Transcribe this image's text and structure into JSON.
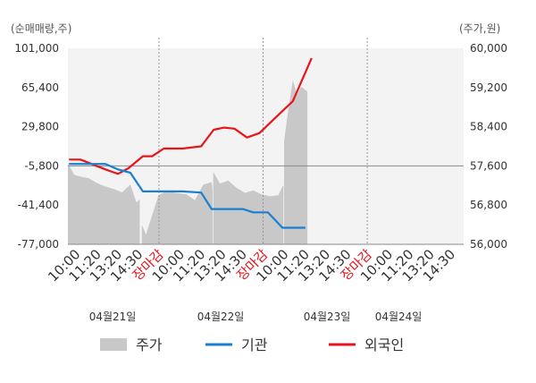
{
  "chart_data": {
    "type": "line",
    "left_unit": "(순매매량,주)",
    "right_unit": "(주가,원)",
    "left_ticks": [
      "101,000",
      "65,400",
      "29,800",
      "-5,800",
      "-41,400",
      "-77,000"
    ],
    "right_ticks": [
      "60,000",
      "59,200",
      "58,400",
      "57,600",
      "56,800",
      "56,000"
    ],
    "left_range": [
      -77000,
      101000
    ],
    "right_range": [
      56000,
      60000
    ],
    "x_ticks": [
      "10:00",
      "11:20",
      "13:20",
      "14:30",
      "장마감",
      "10:00",
      "11:20",
      "13:20",
      "14:30",
      "장마감",
      "10:00",
      "11:20",
      "13:20",
      "14:30",
      "장마감",
      "10:00",
      "11:20",
      "13:20",
      "14:30"
    ],
    "close_label": "장마감",
    "dates": [
      "04월21일",
      "04월22일",
      "04월23일",
      "04월24일"
    ],
    "legend": [
      {
        "name": "주가",
        "color": "#c8c8c8"
      },
      {
        "name": "기관",
        "color": "#1a7fd1"
      },
      {
        "name": "외국인",
        "color": "#e8141c"
      }
    ],
    "series": [
      {
        "name": "외국인",
        "axis": "left",
        "color": "#e8141c",
        "x": [
          0.05,
          0.6,
          1.8,
          2.4,
          2.9,
          3.6,
          4.05,
          4.6,
          5.5,
          6.4,
          7.0,
          7.5,
          8.0,
          8.6,
          9.2,
          9.8,
          10.3,
          10.8,
          11.7
        ],
        "values": [
          0,
          0,
          -9000,
          -13000,
          -8000,
          3000,
          3000,
          10000,
          10000,
          12000,
          27000,
          29000,
          28000,
          20000,
          24000,
          35000,
          44000,
          53000,
          92000
        ]
      },
      {
        "name": "기관",
        "axis": "left",
        "color": "#1a7fd1",
        "x": [
          0.05,
          1.8,
          2.4,
          3.0,
          3.6,
          5.5,
          6.4,
          6.9,
          7.4,
          8.4,
          8.9,
          9.6,
          10.3,
          10.8,
          11.0,
          11.4
        ],
        "values": [
          -4000,
          -4000,
          -9000,
          -12000,
          -29000,
          -29000,
          -30000,
          -45000,
          -45000,
          -45000,
          -48000,
          -48000,
          -62000,
          -62000,
          -62000,
          -62000
        ]
      }
    ],
    "price": {
      "axis": "right",
      "color": "#c8c8c8",
      "sessions": [
        {
          "x": [
            0.0,
            0.3,
            0.6,
            1.0,
            1.4,
            1.8,
            2.2,
            2.6,
            3.0,
            3.3,
            3.45
          ],
          "values": [
            57650,
            57420,
            57380,
            57350,
            57250,
            57180,
            57130,
            57060,
            57220,
            56850,
            56920
          ]
        },
        {
          "x": [
            3.55,
            3.75,
            4.05,
            4.35,
            4.7,
            5.2,
            5.7,
            6.1,
            6.5,
            6.9,
            6.95
          ],
          "values": [
            56400,
            56200,
            56600,
            57000,
            57080,
            57050,
            57020,
            56900,
            57220,
            57270,
            57100
          ]
        },
        {
          "x": [
            6.98,
            7.3,
            7.7,
            8.1,
            8.5,
            8.9,
            9.3,
            9.7,
            10.1,
            10.3,
            10.35
          ],
          "values": [
            57480,
            57240,
            57300,
            57150,
            57050,
            57100,
            57020,
            56980,
            57000,
            57180,
            57200
          ]
        },
        {
          "x": [
            10.38,
            10.55,
            10.8,
            11.0,
            11.2,
            11.5
          ],
          "values": [
            58100,
            58650,
            59350,
            59050,
            59220,
            59120
          ]
        }
      ]
    }
  }
}
